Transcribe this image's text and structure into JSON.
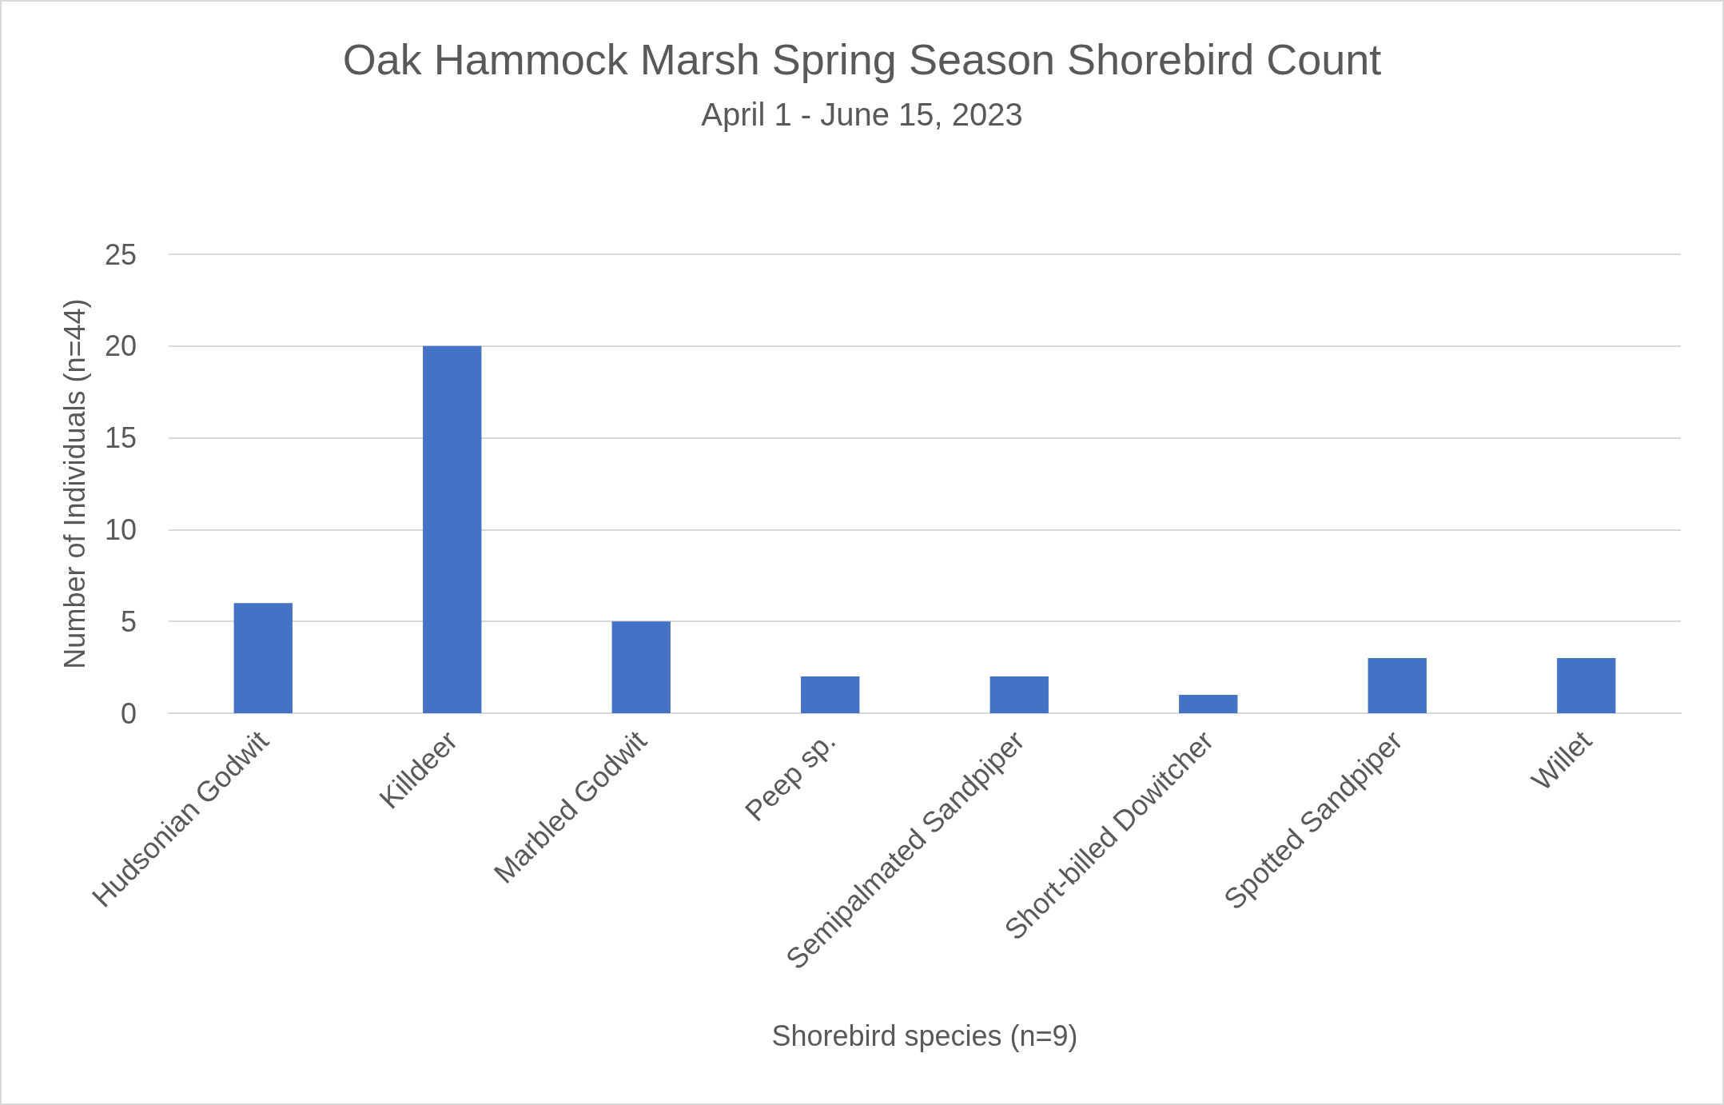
{
  "chart_data": {
    "type": "bar",
    "title": "Oak Hammock Marsh Spring Season Shorebird Count",
    "subtitle": "April 1 - June 15, 2023",
    "xlabel": "Shorebird species (n=9)",
    "ylabel": "Number of Individuals (n=44)",
    "categories": [
      "Hudsonian Godwit",
      "Killdeer",
      "Marbled Godwit",
      "Peep sp.",
      "Semipalmated Sandpiper",
      "Short-billed Dowitcher",
      "Spotted Sandpiper",
      "Willet"
    ],
    "values": [
      6,
      20,
      5,
      2,
      2,
      1,
      3,
      3
    ],
    "color": "#4472c4",
    "ylim": [
      0,
      25
    ],
    "yticks": [
      0,
      5,
      10,
      15,
      20,
      25
    ],
    "grid": "y"
  }
}
